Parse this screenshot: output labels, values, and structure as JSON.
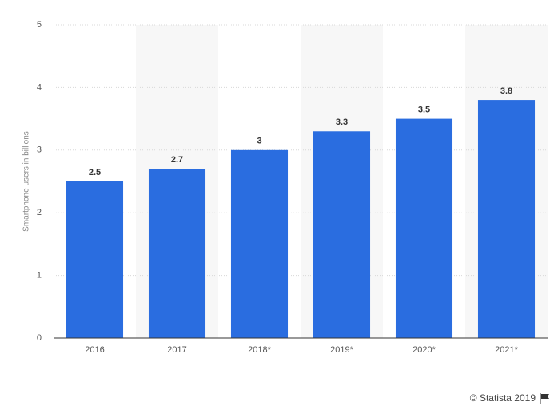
{
  "chart_data": {
    "type": "bar",
    "y_label": "Smartphone users in billions",
    "categories": [
      "2016",
      "2017",
      "2018*",
      "2019*",
      "2020*",
      "2021*"
    ],
    "values": [
      2.5,
      2.7,
      3,
      3.3,
      3.5,
      3.8
    ],
    "color": "#2a6de0",
    "ylim": [
      0,
      5
    ],
    "yticks": [
      0,
      1,
      2,
      3,
      4,
      5
    ],
    "grid": true,
    "credit": "© Statista 2019"
  }
}
